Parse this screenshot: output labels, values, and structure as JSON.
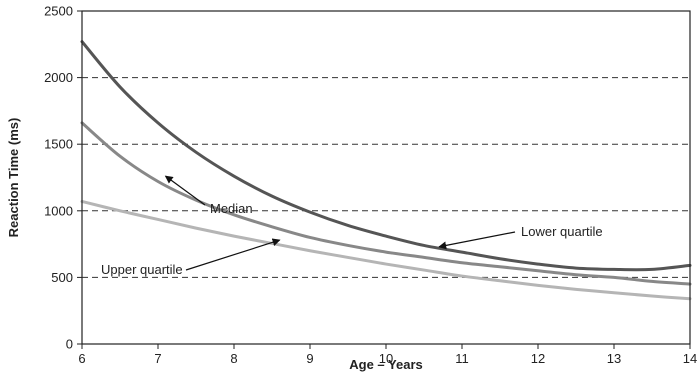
{
  "chart_data": {
    "type": "line",
    "title": "",
    "xlabel": "Age – Years",
    "ylabel": "Reaction Time (ms)",
    "xlim": [
      6,
      14
    ],
    "ylim": [
      0,
      2500
    ],
    "x_ticks": [
      "6",
      "7",
      "8",
      "9",
      "10",
      "11",
      "12",
      "13",
      "14"
    ],
    "y_ticks": [
      "0",
      "500",
      "1000",
      "1500",
      "2000",
      "2500"
    ],
    "grid": "horizontal-dashed",
    "series": [
      {
        "name": "Lower quartile",
        "color": "#555555",
        "x": [
          6,
          6.5,
          7,
          7.5,
          8,
          8.5,
          9,
          9.5,
          10,
          10.5,
          11,
          11.5,
          12,
          12.5,
          13,
          13.5,
          14
        ],
        "y": [
          2270,
          1930,
          1660,
          1440,
          1260,
          1110,
          990,
          890,
          810,
          740,
          690,
          640,
          600,
          570,
          560,
          560,
          590
        ]
      },
      {
        "name": "Median",
        "color": "#888888",
        "x": [
          6,
          6.5,
          7,
          7.5,
          8,
          8.5,
          9,
          9.5,
          10,
          10.5,
          11,
          11.5,
          12,
          12.5,
          13,
          13.5,
          14
        ],
        "y": [
          1660,
          1410,
          1220,
          1080,
          970,
          880,
          800,
          740,
          690,
          650,
          610,
          580,
          550,
          520,
          500,
          470,
          450
        ]
      },
      {
        "name": "Upper quartile",
        "color": "#b5b5b5",
        "x": [
          6,
          6.5,
          7,
          7.5,
          8,
          8.5,
          9,
          9.5,
          10,
          10.5,
          11,
          11.5,
          12,
          12.5,
          13,
          13.5,
          14
        ],
        "y": [
          1070,
          1000,
          935,
          870,
          810,
          755,
          700,
          650,
          600,
          555,
          510,
          475,
          440,
          410,
          385,
          360,
          340
        ]
      }
    ],
    "annotations": [
      {
        "text": "Median",
        "target_series": "Median",
        "target_x": 7.1,
        "target_y": 1260
      },
      {
        "text": "Lower quartile",
        "target_series": "Lower quartile",
        "target_x": 10.7,
        "target_y": 730
      },
      {
        "text": "Upper quartile",
        "target_series": "Upper quartile",
        "target_x": 8.6,
        "target_y": 780
      }
    ]
  }
}
